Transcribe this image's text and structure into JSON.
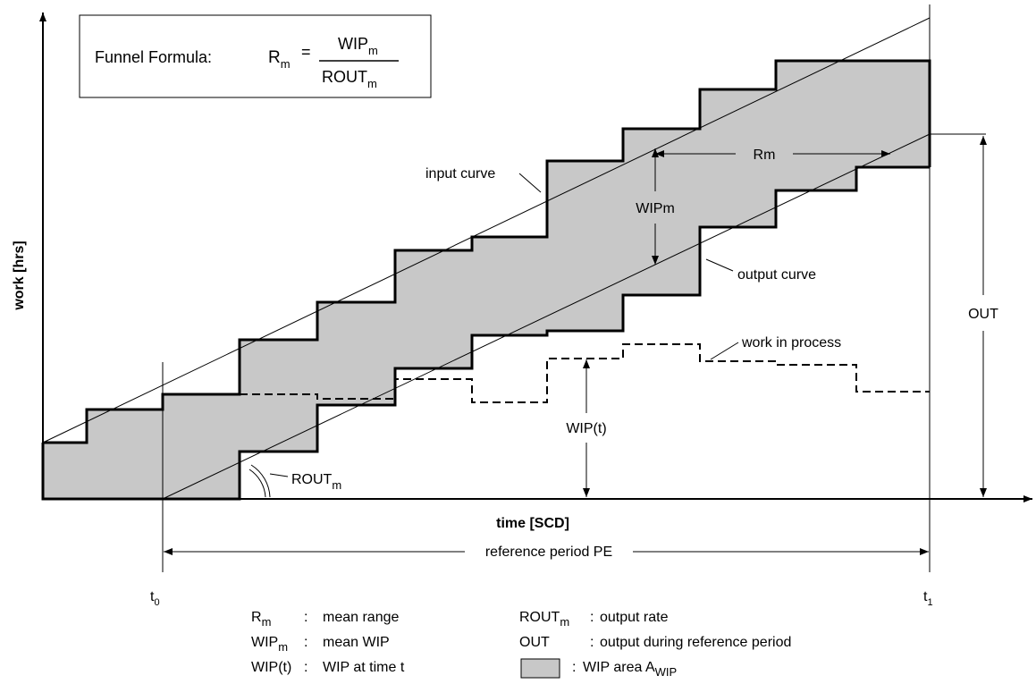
{
  "formula": {
    "label": "Funnel Formula:",
    "lhs": "R",
    "lhs_sub": "m",
    "equals": "=",
    "numerator": "WIP",
    "numerator_sub": "m",
    "denominator": "ROUT",
    "denominator_sub": "m"
  },
  "axes": {
    "y_label": "work [hrs]",
    "x_label": "time [SCD]"
  },
  "labels": {
    "input_curve": "input curve",
    "output_curve": "output curve",
    "rm": "Rm",
    "wipm": "WIPm",
    "work_in_process": "work in process",
    "wip_t": "WIP(t)",
    "out": "OUT",
    "rout": "ROUT",
    "rout_sub": "m",
    "reference_period": "reference period PE",
    "t": "t",
    "t0_sub": "0",
    "t1_sub": "1"
  },
  "legend": [
    {
      "sym": "R",
      "sym_sub": "m",
      "sep": ":",
      "desc": "mean range"
    },
    {
      "sym": "WIP",
      "sym_sub": "m",
      "sep": ":",
      "desc": "mean WIP"
    },
    {
      "sym": "WIP(t)",
      "sym_sub": "",
      "sep": ":",
      "desc": "WIP at time t"
    },
    {
      "sym": "ROUT",
      "sym_sub": "m",
      "sep": ":",
      "desc": "output rate"
    },
    {
      "sym": "OUT",
      "sym_sub": "",
      "sep": ":",
      "desc": "output during reference period"
    },
    {
      "sym": "",
      "sym_sub": "",
      "sep": ":",
      "desc": "WIP area A",
      "desc_sub": "WIP"
    }
  ],
  "colors": {
    "shading": "#c8c8c8",
    "line": "#000000"
  }
}
